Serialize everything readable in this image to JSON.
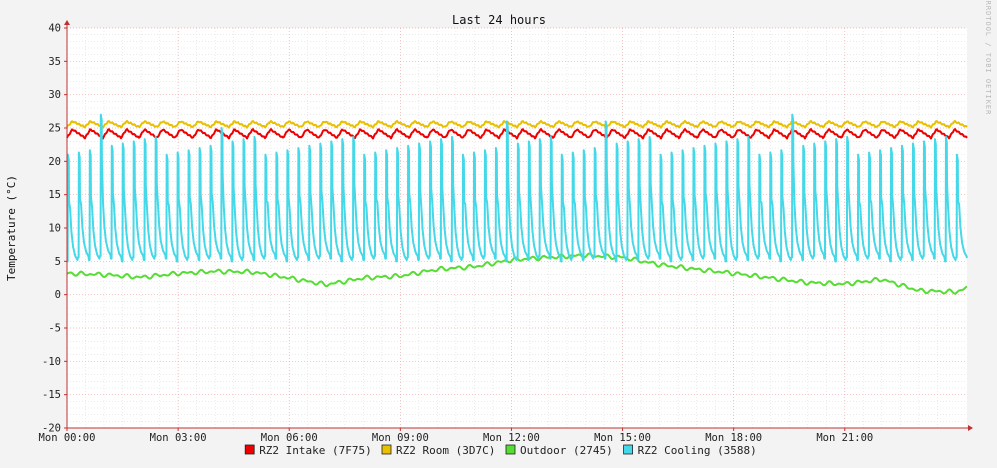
{
  "chart_data": {
    "type": "line",
    "title": "Last 24 hours",
    "ylabel": "Temperature (°C)",
    "xlabel": "",
    "watermark": "RRDTOOL / TOBI OETIKER",
    "ylim": [
      -20,
      40
    ],
    "yticks": [
      40,
      35,
      30,
      25,
      20,
      15,
      10,
      5,
      0,
      -5,
      -10,
      -15,
      -20
    ],
    "ytick_labels": [
      "40",
      "35",
      "30",
      "25",
      "20",
      "15",
      "10",
      "5",
      "0",
      "-5",
      "-10",
      "-15",
      "-20"
    ],
    "xlim_hours": [
      0,
      24.3
    ],
    "xticks_hours": [
      0,
      3,
      6,
      9,
      12,
      15,
      18,
      21
    ],
    "xtick_labels": [
      "Mon 00:00",
      "Mon 03:00",
      "Mon 06:00",
      "Mon 09:00",
      "Mon 12:00",
      "Mon 15:00",
      "Mon 18:00",
      "Mon 21:00"
    ],
    "grid": true,
    "legend_position": "bottom",
    "series": [
      {
        "name": "RZ2 Intake (7F75)",
        "color": "#ee0000",
        "pattern": "oscillating",
        "min": 23.3,
        "max": 24.8,
        "cycles": 50,
        "start_hour": 0,
        "end_hour": 24.3
      },
      {
        "name": "RZ2 Room (3D7C)",
        "color": "#e8c000",
        "pattern": "oscillating",
        "min": 25.0,
        "max": 26.0,
        "cycles": 50,
        "start_hour": 0,
        "end_hour": 24.3
      },
      {
        "name": "Outdoor (2745)",
        "color": "#55dd33",
        "pattern": "trend",
        "start_hour": 0,
        "end_hour": 24.3,
        "x_hours": [
          0,
          1,
          2,
          3,
          4,
          5,
          6,
          7,
          8,
          9,
          10,
          11,
          12,
          13,
          14,
          15,
          16,
          17,
          18,
          19,
          20,
          21,
          22,
          23,
          24,
          24.3
        ],
        "y": [
          3.2,
          3.0,
          2.6,
          3.2,
          3.5,
          3.4,
          2.5,
          1.5,
          2.5,
          2.8,
          3.8,
          4.2,
          5.2,
          5.6,
          5.9,
          5.6,
          4.5,
          3.8,
          3.2,
          2.5,
          1.8,
          1.6,
          2.3,
          0.6,
          0.4,
          1.0
        ]
      },
      {
        "name": "RZ2 Cooling (3588)",
        "color": "#44d8e8",
        "pattern": "sawtooth-spikes",
        "baseline": 5.5,
        "peak_typical": 22,
        "peak_max": 27,
        "cycles": 82,
        "start_hour": 0,
        "end_hour": 24.3
      }
    ]
  }
}
